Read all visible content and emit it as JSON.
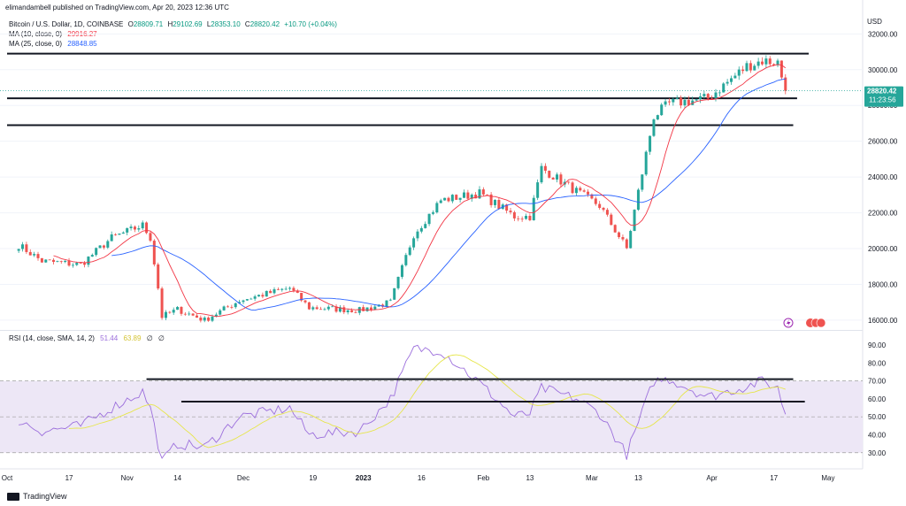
{
  "header": {
    "published_by": "elimandambell published on TradingView.com, Apr 20, 2023 12:36 UTC",
    "symbol": "Bitcoin / U.S. Dollar, 1D, COINBASE",
    "o_label": "O",
    "o_value": "28809.71",
    "h_label": "H",
    "h_value": "29102.69",
    "l_label": "L",
    "l_value": "28353.10",
    "c_label": "C",
    "c_value": "28820.42",
    "change": "+10.70 (+0.04%)"
  },
  "legend": {
    "ma10_label": "MA (10, close, 0)",
    "ma10_value": "29916.27",
    "ma25_label": "MA (25, close, 0)",
    "ma25_value": "28848.85",
    "rsi_label": "RSI (14, close, SMA, 14, 2)",
    "rsi_value": "51.44",
    "rsi_sma_value": "63.89",
    "rsi_extra1": "∅",
    "rsi_extra2": "∅"
  },
  "price_axis": {
    "currency": "USD",
    "last_price_label": "28820.42",
    "countdown": "11:23:56"
  },
  "footer": {
    "brand": "TradingView"
  },
  "colors": {
    "up": "#26a69a",
    "down": "#ef5350",
    "ma10": "#f23645",
    "ma25": "#2962ff",
    "rsi": "#9c6fdc",
    "rsi_sma": "#e6e64a",
    "band": "#ede7f6",
    "line": "#131722"
  },
  "chart_data": {
    "type": "candlestick",
    "title": "Bitcoin / U.S. Dollar, 1D, COINBASE",
    "x_ticks": [
      "Oct",
      "17",
      "Nov",
      "14",
      "Dec",
      "19",
      "2023",
      "16",
      "Feb",
      "13",
      "Mar",
      "13",
      "Apr",
      "17",
      "May"
    ],
    "y_ticks": [
      16000,
      18000,
      20000,
      22000,
      24000,
      26000,
      28000,
      30000,
      32000
    ],
    "ylim": [
      15700,
      33400
    ],
    "anchors": [
      {
        "date": "2022-10-04",
        "close": 20200
      },
      {
        "date": "2022-10-10",
        "close": 19300
      },
      {
        "date": "2022-10-20",
        "close": 19100
      },
      {
        "date": "2022-10-28",
        "close": 20600
      },
      {
        "date": "2022-11-05",
        "close": 21300
      },
      {
        "date": "2022-11-07",
        "close": 20600
      },
      {
        "date": "2022-11-09",
        "close": 17800
      },
      {
        "date": "2022-11-10",
        "close": 16200
      },
      {
        "date": "2022-11-14",
        "close": 16600
      },
      {
        "date": "2022-11-21",
        "close": 16000
      },
      {
        "date": "2022-11-30",
        "close": 17100
      },
      {
        "date": "2022-12-13",
        "close": 17800
      },
      {
        "date": "2022-12-18",
        "close": 16700
      },
      {
        "date": "2022-12-31",
        "close": 16550
      },
      {
        "date": "2023-01-08",
        "close": 17000
      },
      {
        "date": "2023-01-14",
        "close": 20800
      },
      {
        "date": "2023-01-21",
        "close": 22700
      },
      {
        "date": "2023-01-31",
        "close": 23100
      },
      {
        "date": "2023-02-09",
        "close": 21800
      },
      {
        "date": "2023-02-13",
        "close": 21800
      },
      {
        "date": "2023-02-16",
        "close": 24500
      },
      {
        "date": "2023-02-25",
        "close": 23200
      },
      {
        "date": "2023-03-03",
        "close": 22400
      },
      {
        "date": "2023-03-10",
        "close": 20000
      },
      {
        "date": "2023-03-17",
        "close": 27400
      },
      {
        "date": "2023-03-21",
        "close": 28100
      },
      {
        "date": "2023-03-31",
        "close": 28400
      },
      {
        "date": "2023-04-10",
        "close": 30200
      },
      {
        "date": "2023-04-14",
        "close": 30500
      },
      {
        "date": "2023-04-18",
        "close": 30400
      },
      {
        "date": "2023-04-20",
        "close": 28820
      }
    ],
    "ma10_last": 29916.27,
    "ma25_last": 28848.85,
    "horizontal_lines": [
      {
        "from": "2022-10-01",
        "to": "2023-04-26",
        "price": 30900
      },
      {
        "from": "2022-10-01",
        "to": "2023-04-23",
        "price": 28400
      },
      {
        "from": "2022-10-01",
        "to": "2023-04-22",
        "price": 26900
      }
    ],
    "rsi": {
      "y_ticks": [
        30,
        40,
        50,
        60,
        70,
        80,
        90
      ],
      "ylim": [
        22,
        93
      ],
      "upper": 70,
      "middle": 50,
      "lower": 30,
      "last": 51.44,
      "sma_last": 63.89,
      "anchors": [
        {
          "date": "2022-10-04",
          "v": 48
        },
        {
          "date": "2022-10-10",
          "v": 42
        },
        {
          "date": "2022-10-20",
          "v": 45
        },
        {
          "date": "2022-10-28",
          "v": 55
        },
        {
          "date": "2022-11-05",
          "v": 64
        },
        {
          "date": "2022-11-07",
          "v": 55
        },
        {
          "date": "2022-11-10",
          "v": 25
        },
        {
          "date": "2022-11-14",
          "v": 35
        },
        {
          "date": "2022-11-21",
          "v": 33
        },
        {
          "date": "2022-11-30",
          "v": 50
        },
        {
          "date": "2022-12-13",
          "v": 55
        },
        {
          "date": "2022-12-18",
          "v": 40
        },
        {
          "date": "2022-12-31",
          "v": 42
        },
        {
          "date": "2023-01-08",
          "v": 60
        },
        {
          "date": "2023-01-14",
          "v": 88
        },
        {
          "date": "2023-01-21",
          "v": 87
        },
        {
          "date": "2023-01-31",
          "v": 69
        },
        {
          "date": "2023-02-09",
          "v": 50
        },
        {
          "date": "2023-02-13",
          "v": 52
        },
        {
          "date": "2023-02-16",
          "v": 66
        },
        {
          "date": "2023-02-25",
          "v": 60
        },
        {
          "date": "2023-03-03",
          "v": 52
        },
        {
          "date": "2023-03-10",
          "v": 29
        },
        {
          "date": "2023-03-17",
          "v": 70
        },
        {
          "date": "2023-03-21",
          "v": 71
        },
        {
          "date": "2023-03-31",
          "v": 61
        },
        {
          "date": "2023-04-10",
          "v": 67
        },
        {
          "date": "2023-04-14",
          "v": 70
        },
        {
          "date": "2023-04-18",
          "v": 66
        },
        {
          "date": "2023-04-20",
          "v": 51.44
        }
      ],
      "horizontal_lines": [
        {
          "from": "2022-11-06",
          "to": "2023-04-22",
          "v": 71
        },
        {
          "from": "2022-11-15",
          "to": "2023-04-25",
          "v": 58.5
        }
      ]
    }
  }
}
